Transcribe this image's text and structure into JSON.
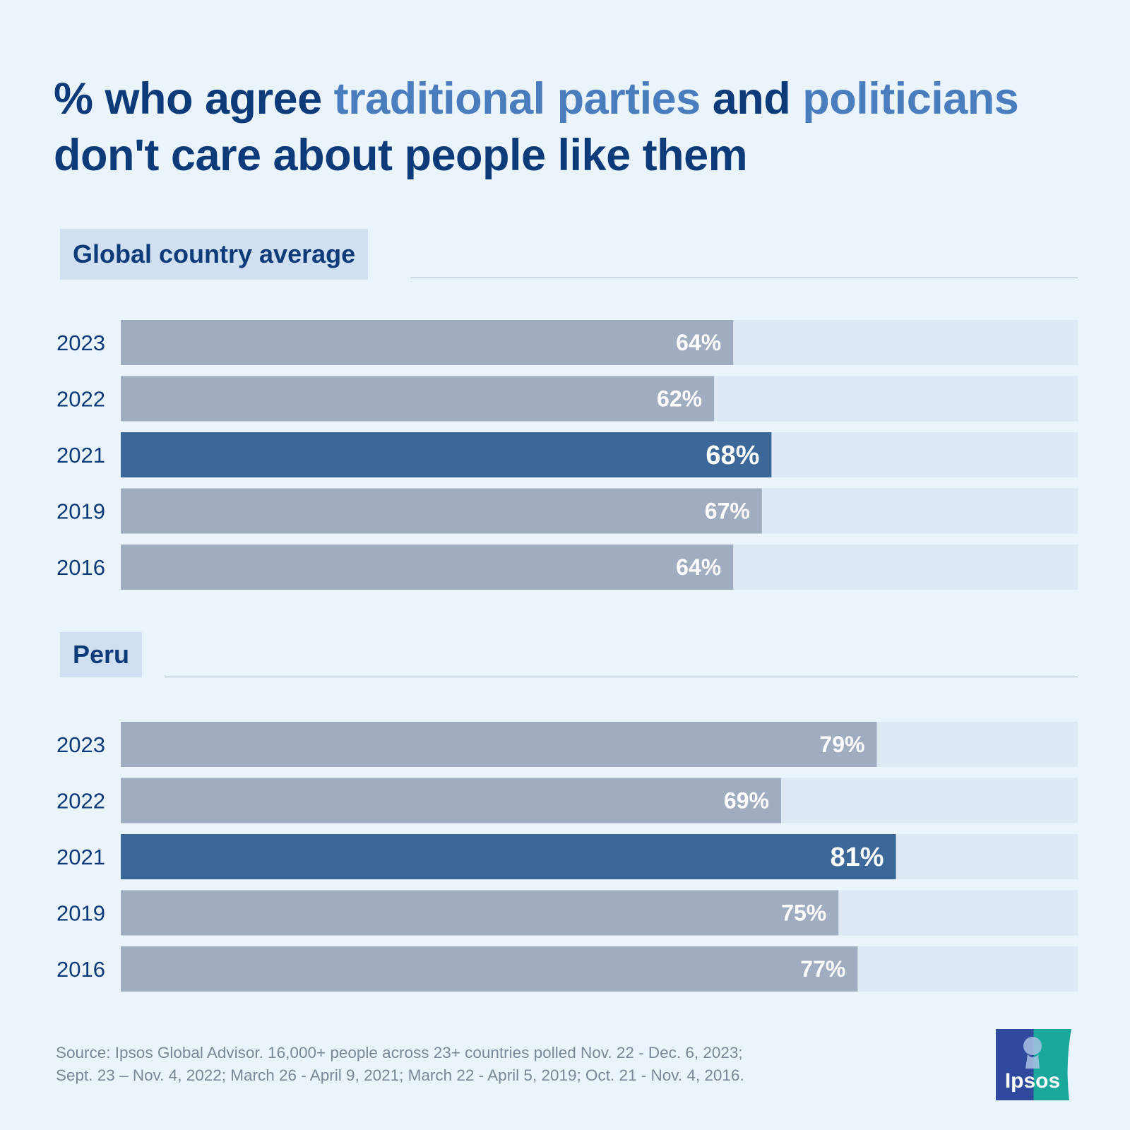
{
  "title": {
    "part1": "% who agree ",
    "hl1": "traditional parties",
    "part2": " and ",
    "hl2": "politicians",
    "part3": "don't care about people like them"
  },
  "colors": {
    "bar": "#a0acbf",
    "bar_highlight": "#3b6899",
    "track": "#dfe9f3",
    "label": "#0d3b7a"
  },
  "chart_data": [
    {
      "type": "bar",
      "orientation": "horizontal",
      "section_label": "Global country average",
      "categories": [
        "2023",
        "2022",
        "2021",
        "2019",
        "2016"
      ],
      "values": [
        64,
        62,
        68,
        67,
        64
      ],
      "value_labels": [
        "64%",
        "62%",
        "68%",
        "67%",
        "64%"
      ],
      "highlight": "2021",
      "xlim": [
        0,
        100
      ]
    },
    {
      "type": "bar",
      "orientation": "horizontal",
      "section_label": "Peru",
      "categories": [
        "2023",
        "2022",
        "2021",
        "2019",
        "2016"
      ],
      "values": [
        79,
        69,
        81,
        75,
        77
      ],
      "value_labels": [
        "79%",
        "69%",
        "81%",
        "75%",
        "77%"
      ],
      "highlight": "2021",
      "xlim": [
        0,
        100
      ]
    }
  ],
  "source": {
    "line1": "Source: Ipsos Global Advisor. 16,000+ people across 23+ countries polled Nov. 22 - Dec. 6, 2023;",
    "line2": "Sept. 23 – Nov. 4, 2022; March 26 - April 9, 2021; March 22 - April 5, 2019; Oct. 21 - Nov. 4, 2016."
  },
  "logo": {
    "text": "Ipsos",
    "icon": "ipsos-logo-icon"
  }
}
